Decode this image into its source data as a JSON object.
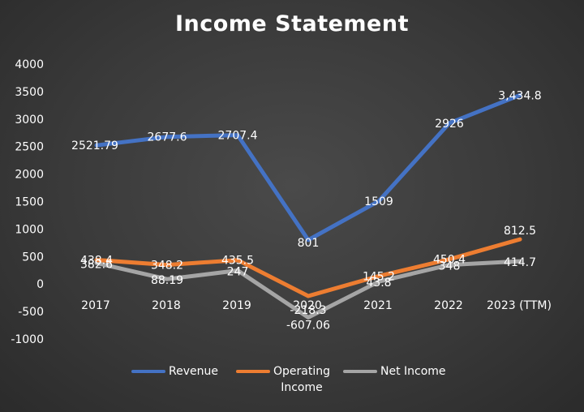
{
  "chart_data": {
    "type": "line",
    "title": "Income Statement",
    "categories": [
      "2017",
      "2018",
      "2019",
      "2020",
      "2021",
      "2022",
      "2023 (TTM)"
    ],
    "ylim": [
      -1000,
      4000
    ],
    "yticks": [
      "4000",
      "3500",
      "3000",
      "2500",
      "2000",
      "1500",
      "1000",
      "500",
      "0",
      "-500",
      "-1000"
    ],
    "grid": false,
    "legend_position": "bottom",
    "series": [
      {
        "name": "Revenue",
        "color": "#4472c4",
        "values": [
          2521.79,
          2677.6,
          2707.4,
          801,
          1509,
          2926,
          3434.8
        ],
        "labels": [
          "2521.79",
          "2677.6",
          "2707.4",
          "801",
          "1509",
          "2926",
          "3,434.8"
        ]
      },
      {
        "name": "Operating Income",
        "legend_lines": [
          "Operating",
          "Income"
        ],
        "color": "#ed7d31",
        "values": [
          438.4,
          348.2,
          435.5,
          -218.3,
          145.2,
          450.4,
          812.5
        ],
        "labels": [
          "438.4",
          "348.2",
          "435.5",
          "-218.3",
          "145.2",
          "450.4",
          "812.5"
        ]
      },
      {
        "name": "Net Income",
        "color": "#a5a5a5",
        "values": [
          382.6,
          88.19,
          247,
          -607.06,
          43.8,
          348,
          414.7
        ],
        "labels": [
          "382.6",
          "88.19",
          "247",
          "-607.06",
          "43.8",
          "348",
          "414.7"
        ]
      }
    ]
  }
}
